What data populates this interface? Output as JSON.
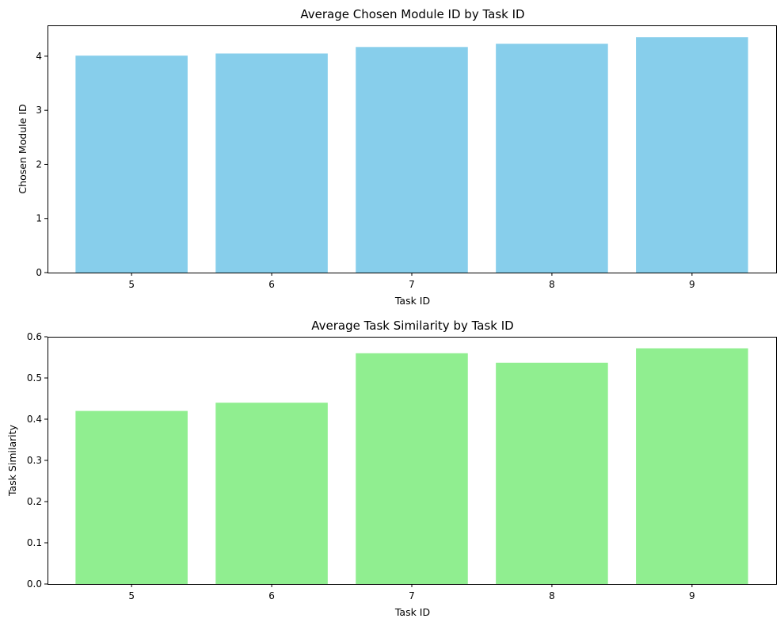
{
  "chart_data": [
    {
      "type": "bar",
      "title": "Average Chosen Module ID by Task ID",
      "xlabel": "Task ID",
      "ylabel": "Chosen Module ID",
      "categories": [
        "5",
        "6",
        "7",
        "8",
        "9"
      ],
      "values": [
        4.01,
        4.05,
        4.17,
        4.23,
        4.35
      ],
      "ylim": [
        0,
        4.57
      ],
      "yticks": [
        "0",
        "1",
        "2",
        "3",
        "4"
      ],
      "ytick_values": [
        0,
        1,
        2,
        3,
        4
      ],
      "grid": false,
      "bar_color": "#87ceeb"
    },
    {
      "type": "bar",
      "title": "Average Task Similarity by Task ID",
      "xlabel": "Task ID",
      "ylabel": "Task Similarity",
      "categories": [
        "5",
        "6",
        "7",
        "8",
        "9"
      ],
      "values": [
        0.42,
        0.44,
        0.56,
        0.537,
        0.572
      ],
      "ylim": [
        0,
        0.6
      ],
      "yticks": [
        "0.0",
        "0.1",
        "0.2",
        "0.3",
        "0.4",
        "0.5",
        "0.6"
      ],
      "ytick_values": [
        0,
        0.1,
        0.2,
        0.3,
        0.4,
        0.5,
        0.6
      ],
      "grid": false,
      "bar_color": "#90ee90"
    }
  ]
}
